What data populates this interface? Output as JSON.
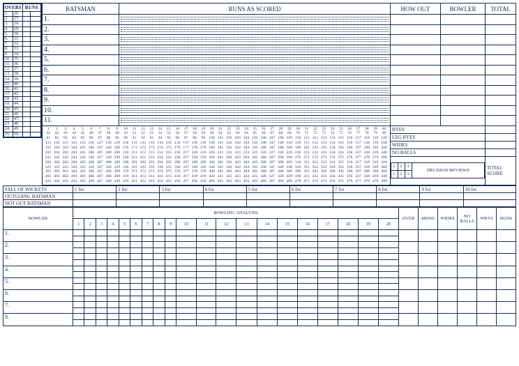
{
  "headers": {
    "overs_runs_l": "OVERS",
    "overs_runs_r": "RUNS",
    "batsman": "BATSMAN",
    "runs_as_scored": "RUNS AS SCORED",
    "how_out": "HOW OUT",
    "bowler_h": "BOWLER",
    "total": "TOTAL",
    "byes": "BYES",
    "leg_byes": "LEG BYES",
    "wides": "WIDES",
    "no_balls": "NO BALLS",
    "decision_reviews": "DECISION REVIEWS",
    "total_score": "TOTAL SCORE",
    "fall_of_wickets": "FALL OF WICKETS",
    "outgoing_batsman": "OUTGOING BATSMAN",
    "not_out_batsman": "NOT OUT BATSMAN",
    "bowling_analysis": "BOWLING ANALYSIS",
    "bowler": "BOWLER",
    "over": "OVER",
    "mdns": "MDNS",
    "wides2": "WIDES",
    "nb2": "NO BALLS",
    "wkts": "WKTS",
    "runs": "RUNS"
  },
  "batsmen_nums": [
    "1.",
    "2.",
    "3.",
    "4.",
    "5.",
    "6.",
    "7.",
    "8.",
    "9.",
    "10.",
    "11."
  ],
  "overs_left": [
    "1.",
    "2.",
    "3.",
    "4.",
    "5.",
    "6.",
    "7.",
    "8.",
    "9.",
    "10.",
    "11.",
    "12.",
    "13.",
    "14.",
    "15.",
    "16.",
    "17.",
    "18.",
    "19.",
    "20.",
    "21.",
    "22.",
    "23.",
    "24.",
    "25."
  ],
  "overs_right": [
    "26.",
    "27.",
    "28.",
    "29.",
    "30.",
    "31.",
    "32.",
    "33.",
    "34.",
    "35.",
    "36.",
    "37.",
    "38.",
    "39.",
    "40.",
    "41.",
    "42.",
    "43.",
    "44.",
    "45.",
    "46.",
    "47.",
    "48.",
    "49.",
    "50."
  ],
  "fow_labels": [
    "1 for",
    "2 for",
    "3 for",
    "4 for",
    "5 for",
    "6 for",
    "7 for",
    "8 for",
    "9 for",
    "10 for"
  ],
  "over_nums": [
    "1",
    "2",
    "3",
    "4",
    "5",
    "6",
    "7",
    "8",
    "9",
    "10",
    "11",
    "12",
    "13",
    "14",
    "15",
    "16",
    "17",
    "18",
    "19",
    "20"
  ],
  "bowler_nums": [
    "1.",
    "2.",
    "3.",
    "4.",
    "5.",
    "6.",
    "7.",
    "8."
  ],
  "review_nums": [
    "1.",
    "2.",
    "3."
  ],
  "numgrid": {
    "start": 1,
    "end": 480,
    "per_row": 40
  },
  "colors": {
    "ink": "#1a2b4f",
    "bg": "#ffffff"
  }
}
